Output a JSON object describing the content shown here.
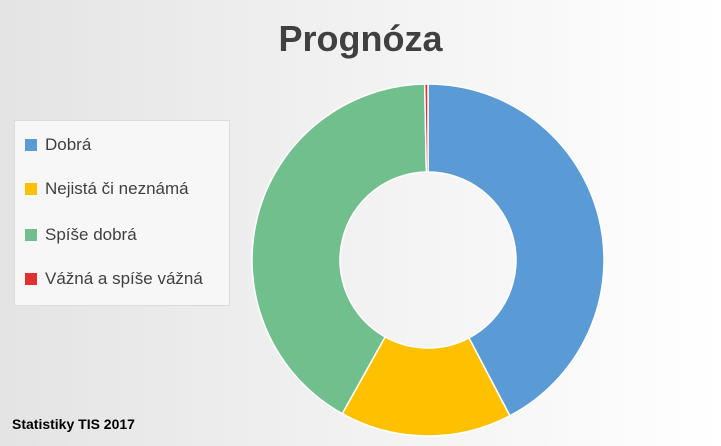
{
  "chart_data": {
    "type": "pie",
    "subtype": "donut",
    "title": "Prognóza",
    "categories": [
      "Dobrá",
      "Nejistá či neznámá",
      "Spíše dobrá",
      "Vážná a spíše vážná"
    ],
    "values": [
      42.3,
      15.8,
      41.6,
      0.3
    ],
    "colors": [
      "#5b9bd5",
      "#ffc000",
      "#70bf8c",
      "#e03030"
    ],
    "legend_position": "left"
  },
  "footer": {
    "source": "Statistiky TIS 2017"
  }
}
